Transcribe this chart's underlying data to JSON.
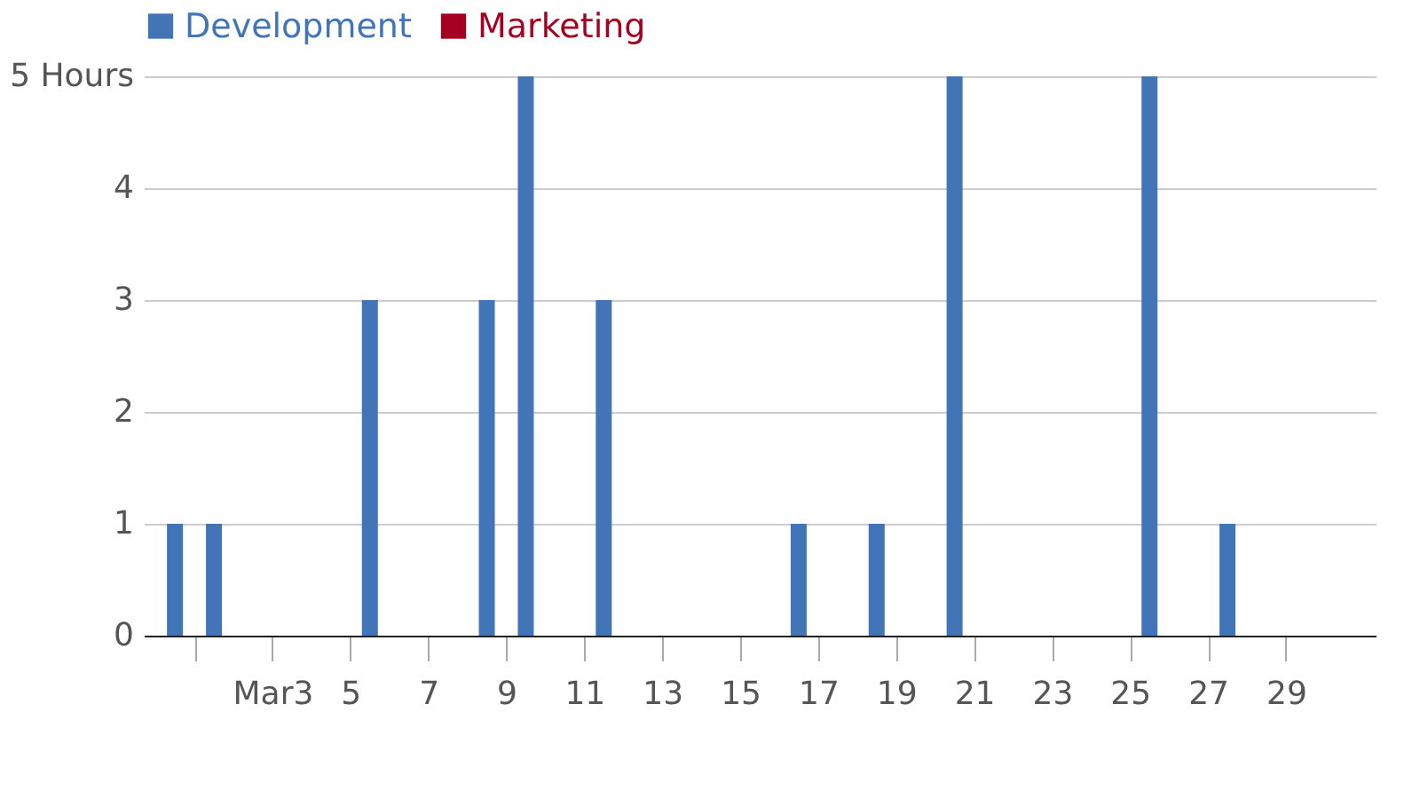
{
  "chart_data": {
    "type": "bar",
    "x": [
      0.5,
      1.5,
      5.5,
      8.5,
      9.5,
      11.5,
      16.5,
      18.5,
      20.5,
      25.5,
      27.5
    ],
    "series": [
      {
        "name": "Development",
        "color": "#4275b8",
        "values": [
          1,
          1,
          3,
          3,
          5,
          3,
          1,
          1,
          5,
          5,
          1
        ]
      },
      {
        "name": "Marketing",
        "color": "#a50021",
        "values": [
          null,
          null,
          null,
          null,
          null,
          null,
          null,
          null,
          null,
          null,
          null
        ]
      }
    ],
    "xlim": [
      -0.3,
      31.3
    ],
    "xticks": [
      {
        "value": 1,
        "label": null
      },
      {
        "value": 3,
        "label": "Mar3"
      },
      5,
      7,
      9,
      11,
      13,
      15,
      17,
      19,
      21,
      23,
      25,
      27,
      29
    ],
    "ylim": [
      0,
      5
    ],
    "yticks": [
      0,
      1,
      2,
      3,
      4,
      {
        "value": 5,
        "label": "5 Hours"
      }
    ],
    "grid": "y",
    "legend": "top left"
  }
}
